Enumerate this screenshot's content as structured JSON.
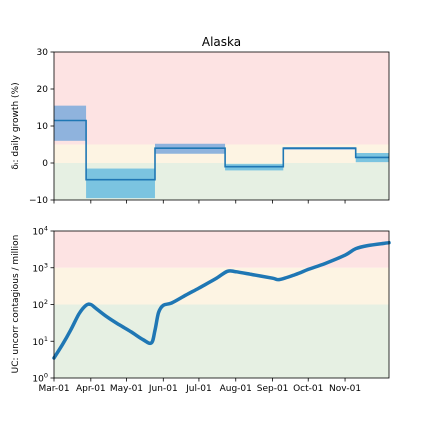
{
  "chart_data": [
    {
      "type": "line",
      "title": "Alaska",
      "ylabel": "δᵢ: daily growth (%)",
      "ylim": [
        -10,
        30
      ],
      "yticks": [
        -10,
        0,
        10,
        20,
        30
      ],
      "ytick_labels": [
        "−10",
        "0",
        "10",
        "20",
        "30"
      ],
      "zones": [
        {
          "from": 5,
          "to": 30,
          "color": "#fde3e3"
        },
        {
          "from": 0,
          "to": 5,
          "color": "#fdf4e3"
        },
        {
          "from": -10,
          "to": 0,
          "color": "#e6f0e3"
        }
      ],
      "steps": [
        {
          "start": "2020-03-01",
          "end": "2020-03-28",
          "value": 11.5,
          "low": 6.0,
          "high": 15.5,
          "band_color": "#8fb3dd"
        },
        {
          "start": "2020-03-28",
          "end": "2020-05-25",
          "value": -4.5,
          "low": -9.5,
          "high": -1.5,
          "band_color": "#7bc4e0"
        },
        {
          "start": "2020-05-25",
          "end": "2020-07-23",
          "value": 4.0,
          "low": 2.5,
          "high": 5.2,
          "band_color": "#8fb3dd"
        },
        {
          "start": "2020-07-23",
          "end": "2020-09-10",
          "value": -1.0,
          "low": -2.0,
          "high": -0.3,
          "band_color": "#7bc4e0"
        },
        {
          "start": "2020-09-10",
          "end": "2020-11-10",
          "value": 4.0,
          "low": 3.6,
          "high": 4.3,
          "band_color": "#8fb3dd"
        },
        {
          "start": "2020-11-10",
          "end": "2020-12-08",
          "value": 1.5,
          "low": 0.2,
          "high": 2.7,
          "band_color": "#7bc4e0"
        }
      ],
      "line_color": "#1f77b4"
    },
    {
      "type": "line",
      "ylabel": "UC: uncorr contagious / million",
      "yscale": "log",
      "ylim": [
        1,
        10000
      ],
      "yticks": [
        1,
        10,
        100,
        1000,
        10000
      ],
      "ytick_labels": [
        [
          "10",
          "0"
        ],
        [
          "10",
          "1"
        ],
        [
          "10",
          "2"
        ],
        [
          "10",
          "3"
        ],
        [
          "10",
          "4"
        ]
      ],
      "xlabels": [
        "Mar-01",
        "Apr-01",
        "May-01",
        "Jun-01",
        "Jul-01",
        "Aug-01",
        "Sep-01",
        "Oct-01",
        "Nov-01"
      ],
      "xtick_dates": [
        "2020-03-01",
        "2020-04-01",
        "2020-05-01",
        "2020-06-01",
        "2020-07-01",
        "2020-08-01",
        "2020-09-01",
        "2020-10-01",
        "2020-11-01"
      ],
      "xlim": [
        "2020-03-01",
        "2020-12-08"
      ],
      "zones": [
        {
          "from": 1000,
          "to": 10000,
          "color": "#fde3e3"
        },
        {
          "from": 100,
          "to": 1000,
          "color": "#fdf4e3"
        },
        {
          "from": 1,
          "to": 100,
          "color": "#e6f0e3"
        }
      ],
      "series": [
        {
          "color": "#1f77b4",
          "points": [
            [
              "2020-03-01",
              3.5
            ],
            [
              "2020-03-08",
              8
            ],
            [
              "2020-03-15",
              20
            ],
            [
              "2020-03-22",
              55
            ],
            [
              "2020-03-28",
              95
            ],
            [
              "2020-04-01",
              100
            ],
            [
              "2020-04-05",
              80
            ],
            [
              "2020-04-15",
              45
            ],
            [
              "2020-04-25",
              28
            ],
            [
              "2020-05-05",
              18
            ],
            [
              "2020-05-15",
              11
            ],
            [
              "2020-05-22",
              9
            ],
            [
              "2020-05-25",
              20
            ],
            [
              "2020-05-28",
              60
            ],
            [
              "2020-06-01",
              95
            ],
            [
              "2020-06-08",
              110
            ],
            [
              "2020-06-20",
              180
            ],
            [
              "2020-07-01",
              280
            ],
            [
              "2020-07-15",
              500
            ],
            [
              "2020-07-25",
              800
            ],
            [
              "2020-08-01",
              780
            ],
            [
              "2020-08-15",
              650
            ],
            [
              "2020-09-01",
              520
            ],
            [
              "2020-09-07",
              480
            ],
            [
              "2020-09-20",
              650
            ],
            [
              "2020-10-01",
              900
            ],
            [
              "2020-10-15",
              1300
            ],
            [
              "2020-11-01",
              2200
            ],
            [
              "2020-11-10",
              3300
            ],
            [
              "2020-11-20",
              4000
            ],
            [
              "2020-12-08",
              4800
            ]
          ]
        }
      ]
    }
  ]
}
